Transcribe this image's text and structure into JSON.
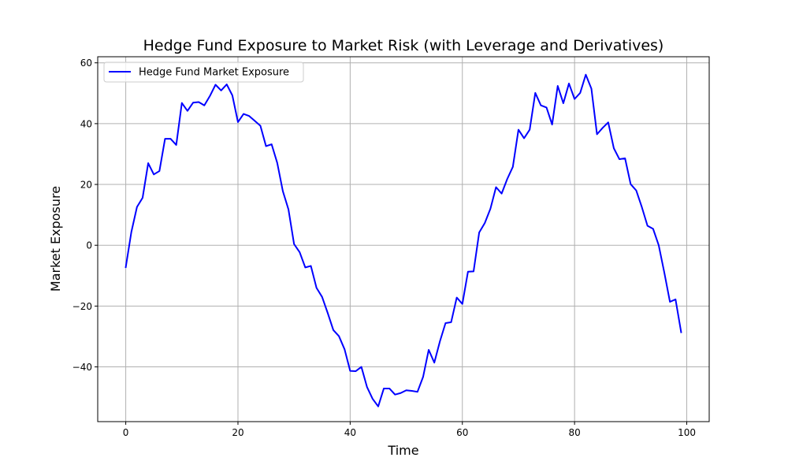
{
  "chart_data": {
    "type": "line",
    "title": "Hedge Fund Exposure to Market Risk (with Leverage and Derivatives)",
    "xlabel": "Time",
    "ylabel": "Market Exposure",
    "xlim": [
      -5,
      104
    ],
    "ylim": [
      -58,
      62
    ],
    "xticks": [
      0,
      20,
      40,
      60,
      80,
      100
    ],
    "yticks": [
      -40,
      -20,
      0,
      20,
      40,
      60
    ],
    "grid": true,
    "legend_position": "upper-left",
    "series": [
      {
        "name": "Hedge Fund Market Exposure",
        "color": "#0000ff",
        "x": [
          0,
          1,
          2,
          3,
          4,
          5,
          6,
          7,
          8,
          9,
          10,
          11,
          12,
          13,
          14,
          15,
          16,
          17,
          18,
          19,
          20,
          21,
          22,
          23,
          24,
          25,
          26,
          27,
          28,
          29,
          30,
          31,
          32,
          33,
          34,
          35,
          36,
          37,
          38,
          39,
          40,
          41,
          42,
          43,
          44,
          45,
          46,
          47,
          48,
          49,
          50,
          51,
          52,
          53,
          54,
          55,
          56,
          57,
          58,
          59,
          60,
          61,
          62,
          63,
          64,
          65,
          66,
          67,
          68,
          69,
          70,
          71,
          72,
          73,
          74,
          75,
          76,
          77,
          78,
          79,
          80,
          81,
          82,
          83,
          84,
          85,
          86,
          87,
          88,
          89,
          90,
          91,
          92,
          93,
          94,
          95,
          96,
          97,
          98,
          99
        ],
        "y": [
          -7.2,
          4.4,
          12.6,
          15.6,
          27.0,
          23.3,
          24.4,
          35.0,
          35.0,
          33.0,
          46.8,
          44.2,
          46.9,
          47.1,
          46.0,
          49.1,
          52.8,
          50.9,
          52.9,
          49.3,
          40.5,
          43.2,
          42.5,
          40.9,
          39.3,
          32.6,
          33.2,
          27.1,
          17.8,
          11.8,
          0.4,
          -2.3,
          -7.3,
          -6.8,
          -14.0,
          -17.0,
          -22.3,
          -27.9,
          -29.9,
          -34.2,
          -41.3,
          -41.4,
          -40.0,
          -46.6,
          -50.5,
          -53.0,
          -47.1,
          -47.1,
          -49.1,
          -48.6,
          -47.7,
          -47.9,
          -48.2,
          -43.3,
          -34.4,
          -38.6,
          -31.6,
          -25.6,
          -25.3,
          -17.2,
          -19.3,
          -8.7,
          -8.6,
          4.2,
          7.3,
          12.0,
          19.1,
          17.0,
          21.8,
          25.8,
          38.0,
          35.2,
          38.0,
          50.1,
          46.0,
          45.3,
          39.7,
          52.4,
          46.7,
          53.2,
          48.1,
          50.1,
          56.1,
          51.5,
          36.5,
          38.6,
          40.4,
          31.9,
          28.3,
          28.6,
          20.1,
          18.0,
          12.5,
          6.4,
          5.4,
          0.0,
          -9.0,
          -18.6,
          -17.8,
          -28.6
        ]
      }
    ]
  }
}
